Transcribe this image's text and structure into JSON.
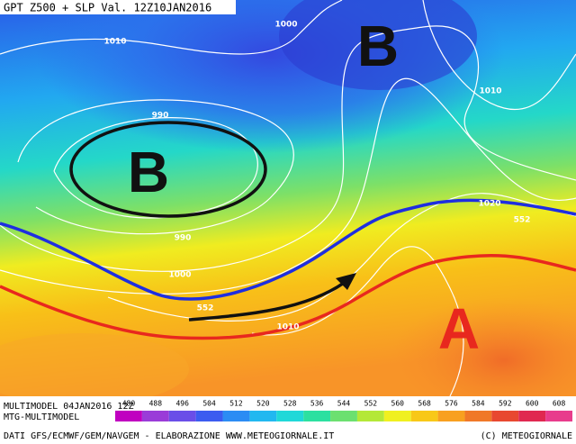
{
  "header": {
    "title": "GPT Z500 + SLP Val. 12Z10JAN2016"
  },
  "map": {
    "isobar_labels": [
      "1010",
      "1000",
      "1010",
      "990",
      "990",
      "1000",
      "1020",
      "552",
      "552",
      "1010"
    ],
    "pressure_centers": [
      {
        "label": "B",
        "color": "#111111"
      },
      {
        "label": "B",
        "color": "#111111"
      },
      {
        "label": "A",
        "color": "#e8281e"
      }
    ]
  },
  "footer": {
    "model": "MULTIMODEL 04JAN2016 12Z",
    "source": "MTG-MULTIMODEL",
    "credits": "DATI GFS/ECMWF/GEM/NAVGEM - ELABORAZIONE WWW.METEOGIORNALE.IT",
    "copyright": "(C) METEOGIORNALE"
  },
  "colorbar": {
    "ticks": [
      480,
      488,
      496,
      504,
      512,
      520,
      528,
      536,
      544,
      552,
      560,
      568,
      576,
      584,
      592,
      600,
      608
    ],
    "colors": [
      "#c000c0",
      "#9a3cd8",
      "#6a4ee8",
      "#3c5cf0",
      "#2c8cf4",
      "#22b8f0",
      "#20d8d8",
      "#2ce0a0",
      "#6ce070",
      "#b4e838",
      "#f0f020",
      "#f8c818",
      "#f8a020",
      "#f07828",
      "#e84830",
      "#e02850",
      "#e83c8c"
    ]
  }
}
